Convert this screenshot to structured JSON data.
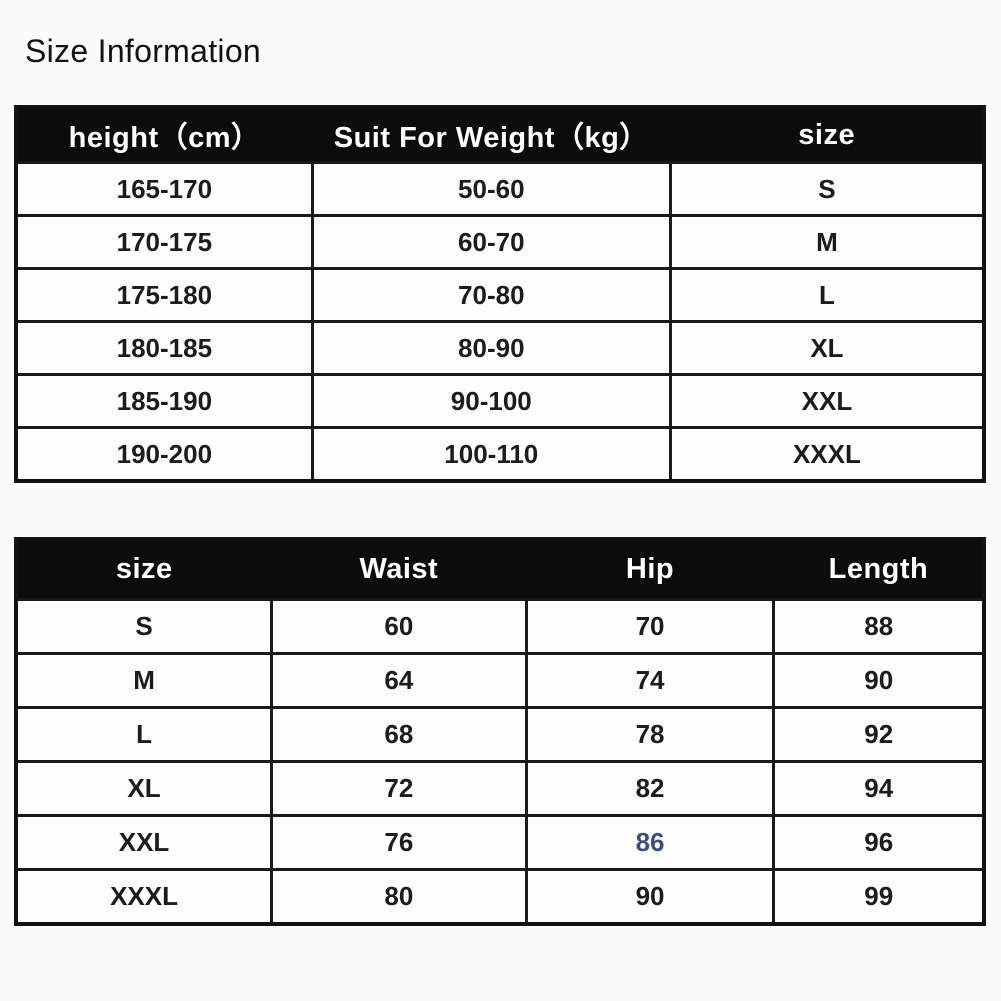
{
  "page": {
    "title": "Size Information"
  },
  "colors": {
    "header_bg": "#0c0c0c",
    "header_text": "#ffffff",
    "cell_text": "#1c1c1c",
    "border": "#1a1a1a",
    "background": "#fbfbfa",
    "highlight_text": "#3d4e7e"
  },
  "chart_data": [
    {
      "type": "table",
      "name": "height-weight-size-table",
      "columns": [
        "height（cm）",
        "Suit For Weight（kg）",
        "size"
      ],
      "rows": [
        [
          "165-170",
          "50-60",
          "S"
        ],
        [
          "170-175",
          "60-70",
          "M"
        ],
        [
          "175-180",
          "70-80",
          "L"
        ],
        [
          "180-185",
          "80-90",
          "XL"
        ],
        [
          "185-190",
          "90-100",
          "XXL"
        ],
        [
          "190-200",
          "100-110",
          "XXXL"
        ]
      ]
    },
    {
      "type": "table",
      "name": "size-measurements-table",
      "columns": [
        "size",
        "Waist",
        "Hip",
        "Length"
      ],
      "rows": [
        [
          "S",
          "60",
          "70",
          "88"
        ],
        [
          "M",
          "64",
          "74",
          "90"
        ],
        [
          "L",
          "68",
          "78",
          "92"
        ],
        [
          "XL",
          "72",
          "82",
          "94"
        ],
        [
          "XXL",
          "76",
          "86",
          "96"
        ],
        [
          "XXXL",
          "80",
          "90",
          "99"
        ]
      ],
      "highlight": {
        "row": 4,
        "col": 2,
        "color": "#3d4e7e"
      }
    }
  ]
}
